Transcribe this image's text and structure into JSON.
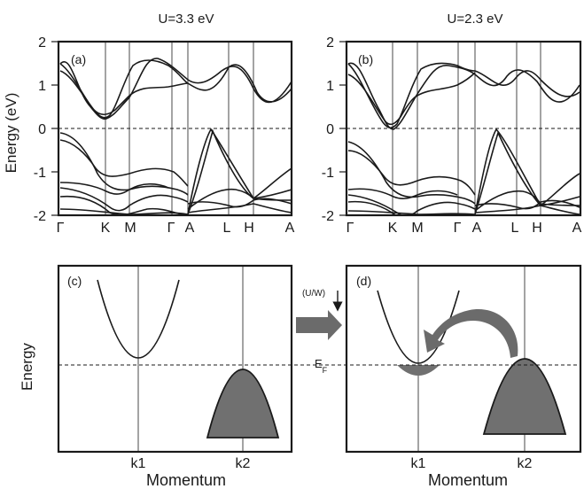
{
  "top": {
    "panel_a": {
      "title": "U=3.3 eV",
      "label": "(a)"
    },
    "panel_b": {
      "title": "U=2.3 eV",
      "label": "(b)"
    },
    "ylabel": "Energy (eV)",
    "yticks": [
      "2",
      "1",
      "0",
      "-1",
      "-2"
    ],
    "kpoints": [
      "Γ",
      "K",
      "M",
      "Γ",
      "A",
      "L",
      "H",
      "A"
    ]
  },
  "bottom": {
    "panel_c": {
      "label": "(c)"
    },
    "panel_d": {
      "label": "(d)"
    },
    "ylabel": "Energy",
    "xlabel": "Momentum",
    "k1": "k1",
    "k2": "k2",
    "arrow_label": "(U/W)",
    "fermi_label": "E",
    "fermi_sub": "F"
  },
  "colors": {
    "line": "#1a1a1a",
    "fill_gray": "#707070",
    "arrow_gray": "#6b6b6b"
  }
}
